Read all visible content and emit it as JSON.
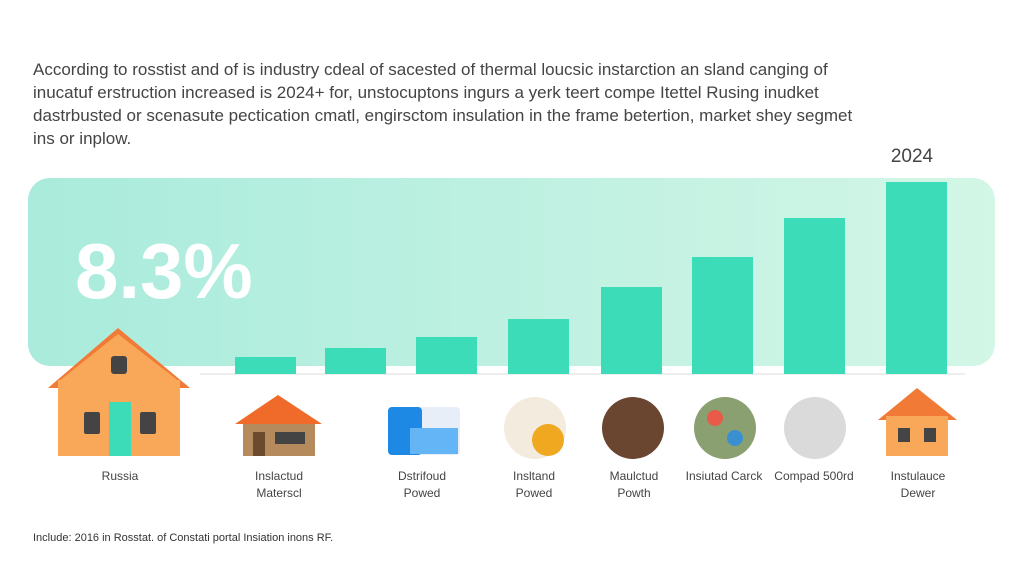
{
  "intro": "According to rosstist and of is industry cdeal of sacested of thermal loucsic instarction an sland canging of inucatuf erstruction increased is 2024+ for, unstocuptons ingurs a yerk teert compe Itettel Rusing inudket dastrbusted or scenasute pectication cmatl, engirsctom insulation in the frame betertion, market shey segmet ins or inplow.",
  "footnote": "Include: 2016 in Rosstat. of Constati portal Insiation inons RF.",
  "chart_data": {
    "type": "bar",
    "headline": "8.3%",
    "year_label": "2024",
    "categories": [
      "Russia",
      "Inslactud Materscl",
      "Dstrifoud Powed",
      "Insltand Powed",
      "Maulctud Powth",
      "Insiutad Carck",
      "Compad 500rd",
      "Instulauce Dewer"
    ],
    "values": [
      17,
      26,
      37,
      55,
      87,
      117,
      156,
      192
    ],
    "color": "#3ddcb8",
    "ylim": [
      0,
      200
    ]
  }
}
